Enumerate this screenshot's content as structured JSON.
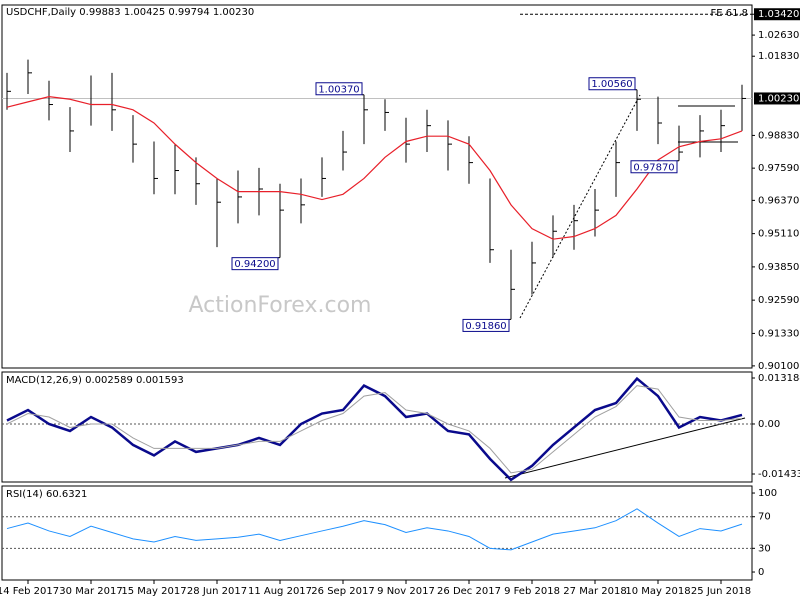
{
  "chart_data": [
    {
      "type": "ohlc",
      "title": "USDCHF,Daily",
      "readout": "0.99883 1.00425 0.99794 1.00230",
      "watermark": "ActionForex.com",
      "categories": [
        null,
        "14 Feb 2017",
        null,
        null,
        "30 Mar 2017",
        null,
        null,
        "15 May 2017",
        null,
        null,
        "28 Jun 2017",
        null,
        null,
        "11 Aug 2017",
        null,
        null,
        "26 Sep 2017",
        null,
        null,
        "9 Nov 2017",
        null,
        null,
        "26 Dec 2017",
        null,
        null,
        "9 Feb 2018",
        null,
        null,
        "27 Mar 2018",
        null,
        null,
        "10 May 2018",
        null,
        null,
        "25 Jun 2018",
        null
      ],
      "close": [
        1.005,
        1.012,
        1.0,
        0.99,
        1.0,
        0.998,
        0.985,
        0.972,
        0.975,
        0.97,
        0.963,
        0.965,
        0.968,
        0.96,
        0.962,
        0.972,
        0.982,
        0.998,
        0.997,
        0.985,
        0.992,
        0.985,
        0.978,
        0.945,
        0.93,
        0.94,
        0.952,
        0.956,
        0.96,
        0.978,
        1.002,
        0.993,
        0.982,
        0.99,
        0.992,
        1.0023
      ],
      "high": [
        1.012,
        1.017,
        1.009,
        0.999,
        1.011,
        1.012,
        0.996,
        0.986,
        0.985,
        0.98,
        0.972,
        0.975,
        0.976,
        0.97,
        0.972,
        0.98,
        0.99,
        1.0037,
        1.002,
        0.995,
        0.998,
        0.994,
        0.988,
        0.972,
        0.945,
        0.948,
        0.958,
        0.962,
        0.968,
        0.986,
        1.0056,
        1.003,
        0.992,
        0.996,
        0.998,
        1.0075
      ],
      "low": [
        0.998,
        1.004,
        0.994,
        0.982,
        0.992,
        0.99,
        0.978,
        0.966,
        0.966,
        0.962,
        0.946,
        0.955,
        0.958,
        0.942,
        0.955,
        0.965,
        0.975,
        0.985,
        0.99,
        0.978,
        0.982,
        0.975,
        0.97,
        0.94,
        0.9186,
        0.928,
        0.942,
        0.945,
        0.95,
        0.965,
        0.99,
        0.985,
        0.9787,
        0.98,
        0.982,
        0.99
      ],
      "bar_color": "#000000",
      "ma": {
        "color": "#e8202a",
        "values": [
          0.999,
          1.001,
          1.003,
          1.002,
          1.0,
          1.0,
          0.998,
          0.993,
          0.985,
          0.978,
          0.972,
          0.967,
          0.967,
          0.967,
          0.966,
          0.964,
          0.966,
          0.972,
          0.98,
          0.986,
          0.988,
          0.988,
          0.985,
          0.975,
          0.962,
          0.953,
          0.949,
          0.95,
          0.953,
          0.958,
          0.968,
          0.979,
          0.984,
          0.986,
          0.987,
          0.99
        ]
      },
      "annotations": [
        {
          "value": 1.0037,
          "label": "1.00370"
        },
        {
          "value": 0.942,
          "label": "0.94200"
        },
        {
          "value": 0.9186,
          "label": "0.91860"
        },
        {
          "value": 1.0056,
          "label": "1.00560"
        },
        {
          "value": 0.9787,
          "label": "0.97870"
        }
      ],
      "current": {
        "value": 1.0023,
        "label": "1.00230"
      },
      "fe_level": {
        "value": 1.0342,
        "label": "FE 61.8"
      },
      "ylim": [
        0.9002,
        1.0377
      ],
      "yticks": [
        {
          "value": 1.0342,
          "label": "1.03420"
        },
        {
          "value": 1.0263,
          "label": "1.02630"
        },
        {
          "value": 1.0183,
          "label": "1.01830"
        },
        {
          "value": 0.9883,
          "label": "0.98830"
        },
        {
          "value": 0.9759,
          "label": "0.97590"
        },
        {
          "value": 0.9637,
          "label": "0.96370"
        },
        {
          "value": 0.9511,
          "label": "0.95110"
        },
        {
          "value": 0.9385,
          "label": "0.93850"
        },
        {
          "value": 0.9259,
          "label": "0.92590"
        },
        {
          "value": 0.9133,
          "label": "0.91330"
        },
        {
          "value": 0.901,
          "label": "0.90100"
        }
      ]
    },
    {
      "type": "line",
      "title": "MACD(12,26,9) 0.002589 0.001593",
      "series": [
        {
          "color": "#0a0a8c",
          "values": [
            0.001,
            0.004,
            0.0,
            -0.002,
            0.002,
            -0.001,
            -0.006,
            -0.009,
            -0.005,
            -0.008,
            -0.007,
            -0.006,
            -0.004,
            -0.006,
            0.0,
            0.003,
            0.004,
            0.011,
            0.008,
            0.002,
            0.003,
            -0.002,
            -0.003,
            -0.01,
            -0.016,
            -0.012,
            -0.006,
            -0.001,
            0.004,
            0.006,
            0.013,
            0.008,
            -0.001,
            0.002,
            0.001,
            0.0026
          ]
        },
        {
          "color": "#a0a0a0",
          "values": [
            0.0,
            0.003,
            0.002,
            -0.001,
            0.0,
            0.0,
            -0.004,
            -0.007,
            -0.007,
            -0.007,
            -0.007,
            -0.006,
            -0.005,
            -0.005,
            -0.002,
            0.001,
            0.003,
            0.008,
            0.009,
            0.004,
            0.003,
            0.0,
            -0.002,
            -0.007,
            -0.014,
            -0.013,
            -0.008,
            -0.003,
            0.002,
            0.005,
            0.011,
            0.01,
            0.002,
            0.001,
            0.001,
            0.0016
          ]
        }
      ],
      "levels": [
        0
      ],
      "ylim": [
        -0.01663,
        0.0149
      ],
      "yticks": [
        {
          "value": 0.013184,
          "label": "0.013184"
        },
        {
          "value": 0,
          "label": "0.00"
        },
        {
          "value": -0.014339,
          "label": "-0.014339"
        }
      ]
    },
    {
      "type": "line",
      "title": "RSI(14) 60.6321",
      "series": [
        {
          "color": "#1e90ff",
          "values": [
            55,
            62,
            52,
            45,
            58,
            50,
            42,
            38,
            45,
            40,
            42,
            44,
            48,
            40,
            46,
            52,
            58,
            65,
            60,
            50,
            56,
            52,
            45,
            30,
            28,
            38,
            48,
            52,
            56,
            65,
            80,
            62,
            45,
            55,
            52,
            60.6
          ]
        }
      ],
      "levels": [
        70,
        30
      ],
      "ylim": [
        -10.1,
        108.9
      ],
      "yticks": [
        100,
        70,
        30,
        0
      ]
    }
  ]
}
